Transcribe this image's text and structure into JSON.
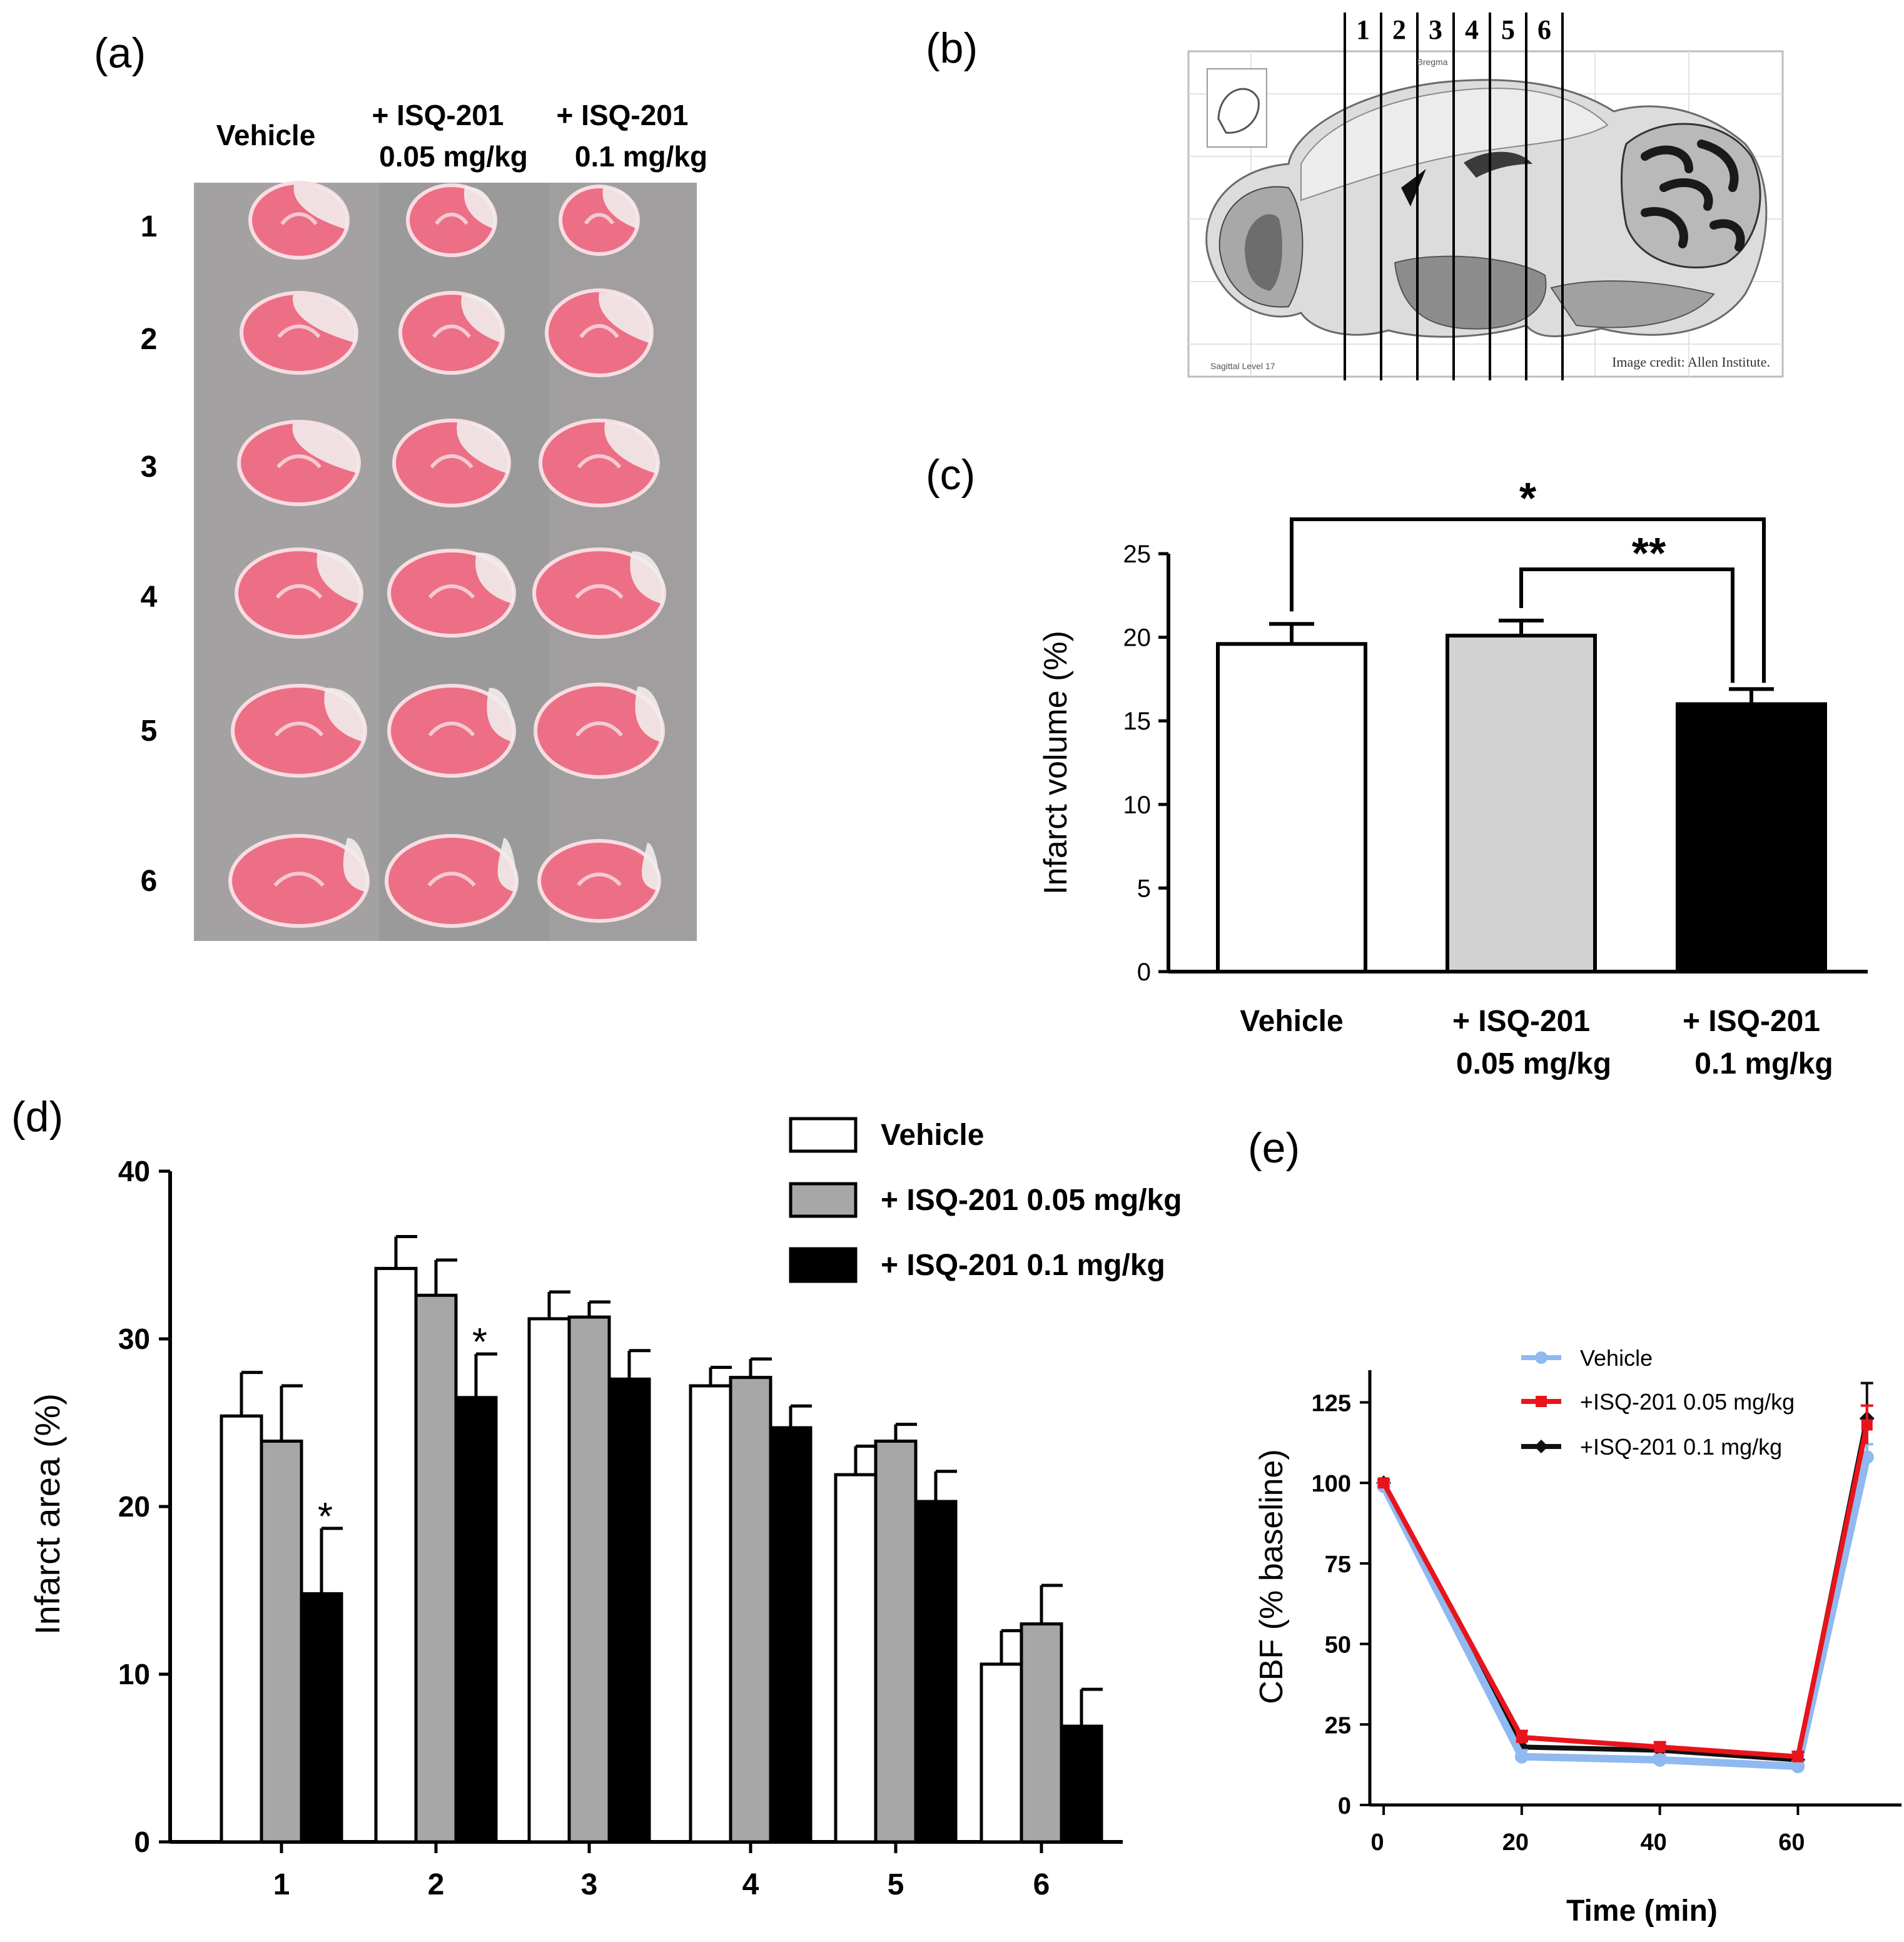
{
  "figure": {
    "panel_labels": [
      "(a)",
      "(b)",
      "(c)",
      "(d)",
      "(e)"
    ]
  },
  "panel_a": {
    "column_headers": [
      {
        "line1": "Vehicle",
        "line2": ""
      },
      {
        "line1": "+ ISQ-201",
        "line2": "0.05 mg/kg"
      },
      {
        "line1": "+ ISQ-201",
        "line2": "0.1 mg/kg"
      }
    ],
    "row_labels": [
      "1",
      "2",
      "3",
      "4",
      "5",
      "6"
    ],
    "colors": {
      "tissue": "#ec6f86",
      "infarct": "#f2ecec",
      "background": "#9f9f9f"
    }
  },
  "panel_b": {
    "slice_numbers": [
      "1",
      "2",
      "3",
      "4",
      "5",
      "6"
    ],
    "credit": "Image credit: Allen Institute.",
    "left_caption": "Sagittal Level 17",
    "top_caption": "Bregma"
  },
  "chart_data": [
    {
      "id": "c",
      "type": "bar",
      "categories": [
        {
          "line1": "Vehicle",
          "line2": ""
        },
        {
          "line1": "+ ISQ-201",
          "line2": "0.05 mg/kg"
        },
        {
          "line1": "+ ISQ-201",
          "line2": "0.1 mg/kg"
        }
      ],
      "values": [
        19.6,
        20.1,
        16.0
      ],
      "errors": [
        1.2,
        0.9,
        0.9
      ],
      "colors": [
        "#ffffff",
        "#d3d3d3",
        "#000000"
      ],
      "ylabel": "Infarct volume (%)",
      "ylim": [
        0,
        25
      ],
      "yticks": [
        "0",
        "5",
        "10",
        "15",
        "20",
        "25"
      ],
      "significance": [
        {
          "from": 0,
          "to": 2,
          "label": "*"
        },
        {
          "from": 1,
          "to": 2,
          "label": "**"
        }
      ]
    },
    {
      "id": "d",
      "type": "bar",
      "categories": [
        "1",
        "2",
        "3",
        "4",
        "5",
        "6"
      ],
      "series": [
        {
          "name": "Vehicle",
          "color": "#ffffff",
          "values": [
            25.4,
            34.2,
            31.2,
            27.2,
            21.9,
            10.6
          ],
          "errors": [
            2.6,
            1.9,
            1.6,
            1.1,
            1.7,
            2.0
          ]
        },
        {
          "name": "+ ISQ-201 0.05 mg/kg",
          "color": "#a7a7a7",
          "values": [
            23.9,
            32.6,
            31.3,
            27.7,
            23.9,
            13.0
          ],
          "errors": [
            3.3,
            2.1,
            0.9,
            1.1,
            1.0,
            2.3
          ]
        },
        {
          "name": "+ ISQ-201 0.1 mg/kg",
          "color": "#000000",
          "values": [
            14.8,
            26.5,
            27.6,
            24.7,
            20.3,
            6.9
          ],
          "errors": [
            3.9,
            2.6,
            1.7,
            1.3,
            1.8,
            2.2
          ]
        }
      ],
      "ylabel": "Infarct area (%)",
      "ylim": [
        0,
        40
      ],
      "yticks": [
        "0",
        "10",
        "20",
        "30",
        "40"
      ],
      "significance_marks": [
        {
          "category": 0,
          "series": 2,
          "label": "*"
        },
        {
          "category": 1,
          "series": 2,
          "label": "*"
        }
      ],
      "legend": "top-right"
    },
    {
      "id": "e",
      "type": "line",
      "x": [
        0,
        20,
        40,
        60,
        70
      ],
      "series": [
        {
          "name": "Vehicle",
          "color": "#8fb9f0",
          "marker": "circle",
          "values": [
            99,
            15,
            14,
            12,
            108
          ],
          "errors": [
            1,
            2,
            1.5,
            1.5,
            4
          ]
        },
        {
          "name": "+ISQ-201 0.05 mg/kg",
          "color": "#e8141c",
          "marker": "square",
          "values": [
            100,
            21,
            18,
            15,
            118
          ],
          "errors": [
            1,
            2,
            1.5,
            1.5,
            6
          ]
        },
        {
          "name": "+ISQ-201 0.1 mg/kg",
          "color": "#111111",
          "marker": "diamond",
          "values": [
            100,
            18,
            17,
            14,
            120
          ],
          "errors": [
            1,
            2,
            1.5,
            1.5,
            11
          ]
        }
      ],
      "xlabel": "Time (min)",
      "ylabel": "CBF (% baseline)",
      "xlim": [
        -2,
        75
      ],
      "ylim": [
        0,
        135
      ],
      "xticks": [
        "0",
        "20",
        "40",
        "60"
      ],
      "yticks": [
        "0",
        "25",
        "50",
        "75",
        "100",
        "125"
      ],
      "legend": "top-right"
    }
  ]
}
